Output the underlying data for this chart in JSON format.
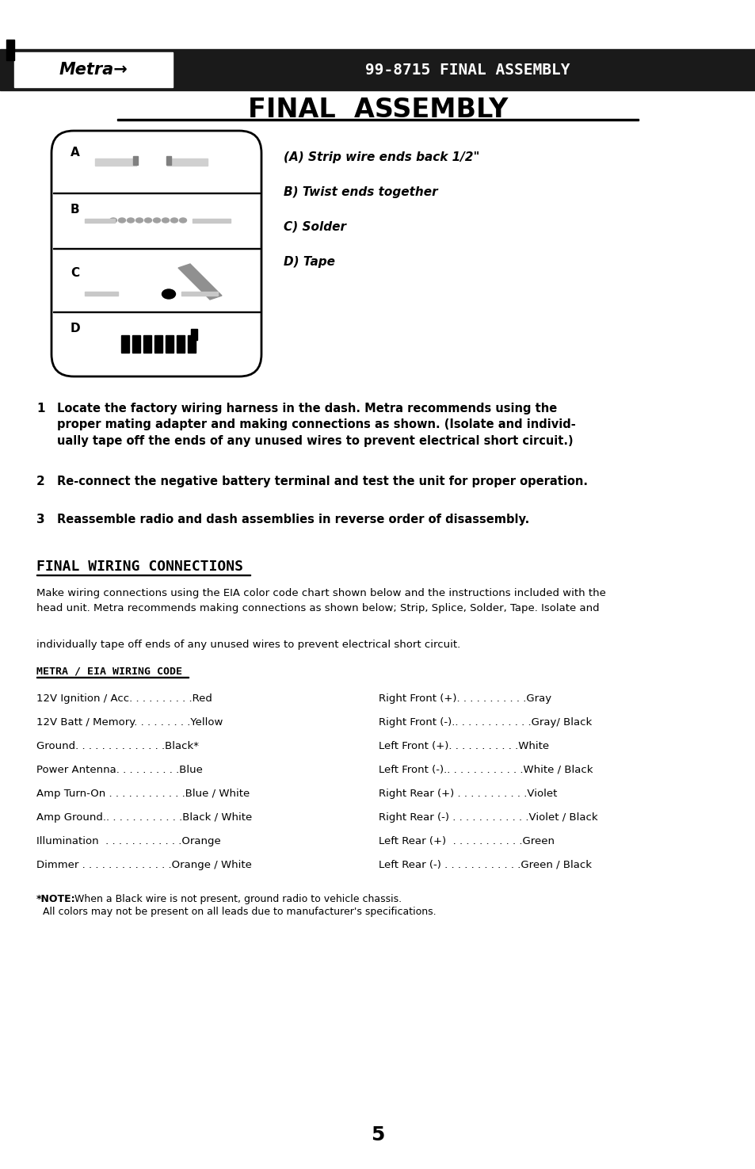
{
  "page_bg": "#ffffff",
  "header_bg": "#1a1a1a",
  "header_text": "99-8715 FINAL ASSEMBLY",
  "page_title": "FINAL  ASSEMBLY",
  "instructions_A": "(A) Strip wire ends back 1/2\"",
  "instructions_B": "B) Twist ends together",
  "instructions_C": "C) Solder",
  "instructions_D": "D) Tape",
  "step1_num": "1",
  "step1_text": "Locate the factory wiring harness in the dash. Metra recommends using the\nproper mating adapter and making connections as shown. (Isolate and individ-\nually tape off the ends of any unused wires to prevent electrical short circuit.)",
  "step2_num": "2",
  "step2_text": "Re-connect the negative battery terminal and test the unit for proper operation.",
  "step3_num": "3",
  "step3_text": "Reassemble radio and dash assemblies in reverse order of disassembly.",
  "section2_title": "FINAL WIRING CONNECTIONS",
  "section2_para1": "Make wiring connections using the EIA color code chart shown below and the instructions included with the\nhead unit. Metra recommends making connections as shown below; Strip, Splice, Solder, Tape. Isolate and",
  "section2_para2": "individually tape off ends of any unused wires to prevent electrical short circuit.",
  "wiring_title": "METRA / EIA WIRING CODE",
  "left_label": [
    "12V Ignition / Acc",
    "12V Batt / Memory",
    "Ground",
    "Power Antenna",
    "Amp Turn-On ",
    "Amp Ground.",
    "Illumination  ",
    "Dimmer "
  ],
  "left_dots": [
    ". . . . . . . . . .",
    ". . . . . . . . .",
    ". . . . . . . . . . . . . .",
    ". . . . . . . . . .",
    ". . . . . . . . . . . .",
    ". . . . . . . . . . . .",
    ". . . . . . . . . . . .",
    ". . . . . . . . . . . . . ."
  ],
  "left_color": [
    "Red",
    "Yellow",
    "Black*",
    "Blue",
    "Blue / White",
    "Black / White",
    "Orange",
    "Orange / White"
  ],
  "right_label": [
    "Right Front (+)",
    "Right Front (-).",
    "Left Front (+)",
    "Left Front (-).",
    "Right Rear (+) ",
    "Right Rear (-) ",
    "Left Rear (+)  ",
    "Left Rear (-) "
  ],
  "right_dots": [
    ". . . . . . . . . . .",
    ". . . . . . . . . . . .",
    ". . . . . . . . . . .",
    ". . . . . . . . . . . .",
    ". . . . . . . . . . .",
    ". . . . . . . . . . . .",
    ". . . . . . . . . . .",
    ". . . . . . . . . . . ."
  ],
  "right_color": [
    "Gray",
    "Gray/ Black",
    "White",
    "White / Black",
    "Violet",
    "Violet / Black",
    "Green",
    "Green / Black"
  ],
  "note_bold": "*NOTE:",
  "note_line1": " When a Black wire is not present, ground radio to vehicle chassis.",
  "note_line2": "  All colors may not be present on all leads due to manufacturer's specifications.",
  "page_number": "5"
}
